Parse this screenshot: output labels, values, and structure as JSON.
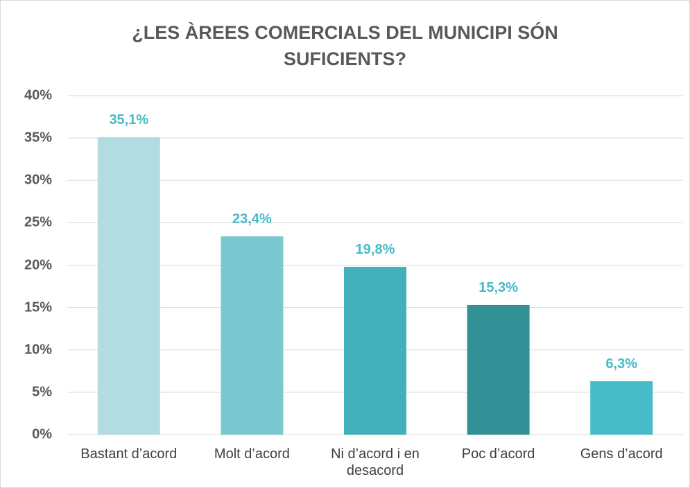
{
  "chart_data": {
    "type": "bar",
    "title": "¿LES ÀREES COMERCIALS DEL MUNICIPI SÓN SUFICIENTS?",
    "categories": [
      "Bastant d’acord",
      "Molt d’acord",
      "Ni d’acord i en desacord",
      "Poc d’acord",
      "Gens d’acord"
    ],
    "values": [
      35.1,
      23.4,
      19.8,
      15.3,
      6.3
    ],
    "value_labels": [
      "35,1%",
      "23,4%",
      "19,8%",
      "15,3%",
      "6,3%"
    ],
    "colors": [
      "#b3dce0",
      "#7ac8cf",
      "#41b0b8",
      "#339096",
      "#45bcc7"
    ],
    "ylim": [
      0,
      40
    ],
    "yticks": [
      {
        "value": 0,
        "label": "0%"
      },
      {
        "value": 5,
        "label": "5%"
      },
      {
        "value": 10,
        "label": "10%"
      },
      {
        "value": 15,
        "label": "15%"
      },
      {
        "value": 20,
        "label": "20%"
      },
      {
        "value": 25,
        "label": "25%"
      },
      {
        "value": 30,
        "label": "30%"
      },
      {
        "value": 35,
        "label": "35%"
      },
      {
        "value": 40,
        "label": "40%"
      }
    ],
    "grid": true
  }
}
